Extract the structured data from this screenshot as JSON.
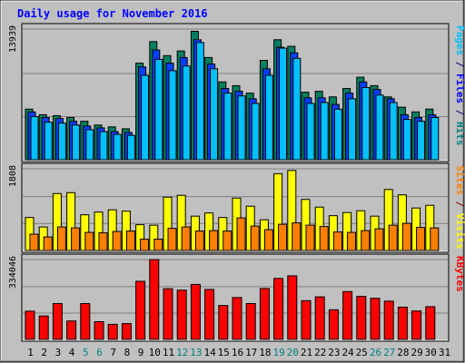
{
  "chart_data": {
    "type": "bar",
    "title": "Daily usage for November 2016",
    "categories": [
      "1",
      "2",
      "3",
      "4",
      "5",
      "6",
      "7",
      "8",
      "9",
      "10",
      "11",
      "12",
      "13",
      "14",
      "15",
      "16",
      "17",
      "18",
      "19",
      "20",
      "21",
      "22",
      "23",
      "24",
      "25",
      "26",
      "27",
      "28",
      "29",
      "30",
      "31"
    ],
    "weekend_days": [
      "5",
      "6",
      "12",
      "13",
      "19",
      "20",
      "26",
      "27"
    ],
    "panels": [
      {
        "id": "top",
        "ymax_label": "13939",
        "ylim": [
          0,
          13939
        ],
        "axis_label_parts": [
          {
            "text": "Pages",
            "color": "#00c0ff"
          },
          {
            "text": " / ",
            "color": "#000080"
          },
          {
            "text": "Files",
            "color": "#0000ff"
          },
          {
            "text": " / ",
            "color": "#000080"
          },
          {
            "text": "Hits",
            "color": "#008080"
          }
        ],
        "series": [
          {
            "name": "Hits",
            "color": "#008060",
            "values": [
              5400,
              4800,
              4700,
              4500,
              4100,
              3700,
              3500,
              3300,
              10300,
              12600,
              11100,
              11600,
              13700,
              10900,
              8300,
              7900,
              7100,
              10600,
              12800,
              12100,
              7200,
              7300,
              6700,
              7600,
              8800,
              7900,
              6700,
              5600,
              5100,
              5400,
              null
            ]
          },
          {
            "name": "Files",
            "color": "#0040ff",
            "values": [
              5100,
              4500,
              4400,
              4100,
              3600,
              3400,
              3000,
              2900,
              9900,
              11700,
              10300,
              10900,
              12800,
              10200,
              7600,
              7300,
              6500,
              9700,
              12000,
              11400,
              6600,
              6600,
              5900,
              7100,
              8300,
              7500,
              6500,
              4800,
              4500,
              4800,
              null
            ]
          },
          {
            "name": "Pages",
            "color": "#00c0ff",
            "values": [
              4600,
              4000,
              3900,
              3700,
              3200,
              3000,
              2700,
              2600,
              9000,
              10700,
              9500,
              10000,
              12500,
              9700,
              7100,
              6800,
              6000,
              9000,
              11900,
              10800,
              6000,
              6100,
              5400,
              6500,
              7700,
              6900,
              6100,
              4300,
              4100,
              4500,
              null
            ]
          }
        ]
      },
      {
        "id": "middle",
        "ymax_label": "1808",
        "ylim": [
          0,
          1808
        ],
        "axis_label_parts": [
          {
            "text": "Sites",
            "color": "#ff8000"
          },
          {
            "text": " / ",
            "color": "#800000"
          },
          {
            "text": "Visits",
            "color": "#ffff00"
          }
        ],
        "series": [
          {
            "name": "Visits",
            "color": "#ffff00",
            "values": [
              730,
              520,
              1260,
              1280,
              790,
              850,
              900,
              870,
              570,
              560,
              1180,
              1220,
              760,
              830,
              730,
              1160,
              980,
              680,
              1700,
              1770,
              1130,
              960,
              770,
              840,
              880,
              760,
              1350,
              1230,
              940,
              1000,
              null
            ]
          },
          {
            "name": "Sites",
            "color": "#ff8000",
            "values": [
              360,
              300,
              520,
              500,
              400,
              390,
              420,
              430,
              250,
              250,
              490,
              520,
              430,
              440,
              430,
              720,
              540,
              460,
              580,
              610,
              560,
              530,
              410,
              400,
              440,
              480,
              560,
              600,
              510,
              500,
              null
            ]
          }
        ]
      },
      {
        "id": "bottom",
        "ymax_label": "334046",
        "ylim": [
          0,
          334046
        ],
        "axis_label_parts": [
          {
            "text": "KBytes",
            "color": "#ff0000"
          }
        ],
        "series": [
          {
            "name": "KBytes",
            "color": "#ff0000",
            "values": [
              118000,
              98000,
              150000,
              77000,
              150000,
              74000,
              63000,
              66000,
              243000,
              334046,
              212000,
              206000,
              230000,
              209000,
              142000,
              175000,
              150000,
              213000,
              255000,
              266000,
              162000,
              178000,
              124000,
              200000,
              180000,
              172000,
              160000,
              135000,
              119000,
              137000,
              null
            ]
          }
        ]
      }
    ],
    "grid": true
  },
  "colors": {
    "background": "#c0c0c0",
    "plot_border": "#000000",
    "title": "#0000ff",
    "weekday_label": "#000000",
    "weekend_label": "#008080"
  }
}
